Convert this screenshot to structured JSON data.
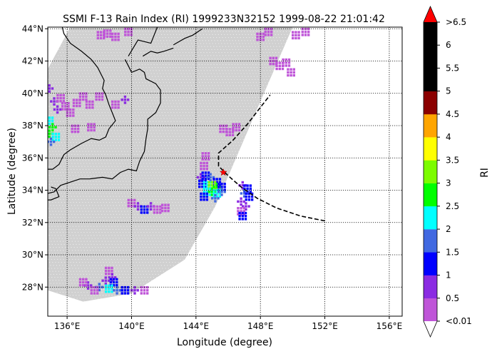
{
  "chart_data": {
    "type": "heatmap",
    "title": "SSMI F-13 Rain Index (RI) 1999233N32152 1999-08-22 21:01:42",
    "xlabel": "Longitude (degree)",
    "ylabel": "Latitude (degree)",
    "xlim": [
      134.8,
      156.8
    ],
    "ylim": [
      26.2,
      44.1
    ],
    "grid": true,
    "x_ticks": [
      {
        "value": 136,
        "label": "136°E"
      },
      {
        "value": 140,
        "label": "140°E"
      },
      {
        "value": 144,
        "label": "144°E"
      },
      {
        "value": 148,
        "label": "148°E"
      },
      {
        "value": 152,
        "label": "152°E"
      },
      {
        "value": 156,
        "label": "156°E"
      }
    ],
    "y_ticks": [
      {
        "value": 28,
        "label": "28°N"
      },
      {
        "value": 30,
        "label": "30°N"
      },
      {
        "value": 32,
        "label": "32°N"
      },
      {
        "value": 34,
        "label": "34°N"
      },
      {
        "value": 36,
        "label": "36°N"
      },
      {
        "value": 38,
        "label": "38°N"
      },
      {
        "value": 40,
        "label": "40°N"
      },
      {
        "value": 42,
        "label": "42°N"
      },
      {
        "value": 44,
        "label": "44°N"
      }
    ],
    "swath": {
      "color": "#d0d0d0",
      "polygon": [
        [
          136.2,
          44.1
        ],
        [
          150.0,
          44.1
        ],
        [
          148.0,
          39.5
        ],
        [
          145.2,
          33.0
        ],
        [
          143.3,
          29.7
        ],
        [
          140.0,
          27.6
        ],
        [
          137.0,
          27.1
        ],
        [
          134.8,
          27.8
        ],
        [
          134.8,
          41.5
        ]
      ]
    },
    "colorbar": {
      "label": "RI",
      "levels": [
        "<0.01",
        "0.5",
        "1",
        "1.5",
        "2",
        "2.5",
        "3",
        "3.5",
        "4",
        "4.5",
        "5",
        "5.5",
        "6",
        ">6.5"
      ],
      "colors": [
        "#bf55d8",
        "#8b2be2",
        "#0000ff",
        "#4169e1",
        "#00ffff",
        "#00ff00",
        "#7cfc00",
        "#ffff00",
        "#ffa500",
        "#8b0000",
        "#000000",
        "#000000",
        "#000000"
      ],
      "over_color": "#ff0000",
      "under_color": "#ffffff"
    },
    "rain_cells": [
      {
        "lon": 134.9,
        "lat": 40.3,
        "level": 1
      },
      {
        "lon": 135.2,
        "lat": 39.5,
        "level": 1
      },
      {
        "lon": 135.4,
        "lat": 39.0,
        "level": 1
      },
      {
        "lon": 134.9,
        "lat": 38.3,
        "level": 4
      },
      {
        "lon": 135.1,
        "lat": 37.9,
        "level": 5
      },
      {
        "lon": 134.9,
        "lat": 37.5,
        "level": 5
      },
      {
        "lon": 135.3,
        "lat": 37.3,
        "level": 4
      },
      {
        "lon": 135.0,
        "lat": 37.0,
        "level": 3
      },
      {
        "lon": 135.6,
        "lat": 39.7,
        "level": 0
      },
      {
        "lon": 135.9,
        "lat": 39.2,
        "level": 0
      },
      {
        "lon": 136.2,
        "lat": 38.8,
        "level": 0
      },
      {
        "lon": 136.6,
        "lat": 39.4,
        "level": 0
      },
      {
        "lon": 137.0,
        "lat": 39.8,
        "level": 0
      },
      {
        "lon": 137.4,
        "lat": 39.3,
        "level": 0
      },
      {
        "lon": 138.0,
        "lat": 39.8,
        "level": 0
      },
      {
        "lon": 136.5,
        "lat": 37.8,
        "level": 0
      },
      {
        "lon": 137.5,
        "lat": 37.9,
        "level": 0
      },
      {
        "lon": 139.0,
        "lat": 39.3,
        "level": 0
      },
      {
        "lon": 139.6,
        "lat": 39.6,
        "level": 1
      },
      {
        "lon": 138.1,
        "lat": 43.6,
        "level": 0
      },
      {
        "lon": 138.5,
        "lat": 43.7,
        "level": 0
      },
      {
        "lon": 139.0,
        "lat": 43.5,
        "level": 0
      },
      {
        "lon": 139.8,
        "lat": 43.8,
        "level": 0
      },
      {
        "lon": 148.0,
        "lat": 43.5,
        "level": 0
      },
      {
        "lon": 148.5,
        "lat": 43.8,
        "level": 0
      },
      {
        "lon": 150.2,
        "lat": 43.6,
        "level": 0
      },
      {
        "lon": 150.8,
        "lat": 43.8,
        "level": 0
      },
      {
        "lon": 148.8,
        "lat": 42.0,
        "level": 0
      },
      {
        "lon": 149.2,
        "lat": 41.7,
        "level": 0
      },
      {
        "lon": 149.6,
        "lat": 41.9,
        "level": 0
      },
      {
        "lon": 149.9,
        "lat": 41.3,
        "level": 0
      },
      {
        "lon": 145.7,
        "lat": 37.8,
        "level": 0
      },
      {
        "lon": 146.1,
        "lat": 37.6,
        "level": 0
      },
      {
        "lon": 146.5,
        "lat": 37.9,
        "level": 0
      },
      {
        "lon": 144.6,
        "lat": 36.1,
        "level": 0
      },
      {
        "lon": 144.5,
        "lat": 35.5,
        "level": 0
      },
      {
        "lon": 144.3,
        "lat": 34.8,
        "level": 1
      },
      {
        "lon": 144.6,
        "lat": 34.9,
        "level": 2
      },
      {
        "lon": 144.9,
        "lat": 34.8,
        "level": 3
      },
      {
        "lon": 145.3,
        "lat": 34.5,
        "level": 2
      },
      {
        "lon": 144.4,
        "lat": 34.4,
        "level": 2
      },
      {
        "lon": 144.7,
        "lat": 34.3,
        "level": 4
      },
      {
        "lon": 145.0,
        "lat": 34.3,
        "level": 6
      },
      {
        "lon": 145.3,
        "lat": 34.2,
        "level": 5
      },
      {
        "lon": 145.6,
        "lat": 34.2,
        "level": 2
      },
      {
        "lon": 144.7,
        "lat": 33.9,
        "level": 4
      },
      {
        "lon": 145.0,
        "lat": 33.9,
        "level": 5
      },
      {
        "lon": 145.3,
        "lat": 33.8,
        "level": 4
      },
      {
        "lon": 145.6,
        "lat": 33.9,
        "level": 3
      },
      {
        "lon": 144.5,
        "lat": 33.6,
        "level": 2
      },
      {
        "lon": 145.2,
        "lat": 33.5,
        "level": 3
      },
      {
        "lon": 146.9,
        "lat": 34.3,
        "level": 1
      },
      {
        "lon": 147.2,
        "lat": 34.1,
        "level": 2
      },
      {
        "lon": 147.0,
        "lat": 33.8,
        "level": 3
      },
      {
        "lon": 147.3,
        "lat": 33.6,
        "level": 2
      },
      {
        "lon": 146.8,
        "lat": 33.3,
        "level": 1
      },
      {
        "lon": 147.1,
        "lat": 33.0,
        "level": 1
      },
      {
        "lon": 146.8,
        "lat": 32.7,
        "level": 0
      },
      {
        "lon": 146.9,
        "lat": 32.4,
        "level": 2
      },
      {
        "lon": 140.0,
        "lat": 33.2,
        "level": 0
      },
      {
        "lon": 140.4,
        "lat": 33.0,
        "level": 1
      },
      {
        "lon": 140.8,
        "lat": 32.8,
        "level": 2
      },
      {
        "lon": 141.2,
        "lat": 33.0,
        "level": 1
      },
      {
        "lon": 141.6,
        "lat": 32.8,
        "level": 0
      },
      {
        "lon": 142.1,
        "lat": 32.9,
        "level": 0
      },
      {
        "lon": 138.6,
        "lat": 29.0,
        "level": 0
      },
      {
        "lon": 138.8,
        "lat": 28.6,
        "level": 1
      },
      {
        "lon": 138.4,
        "lat": 28.4,
        "level": 1
      },
      {
        "lon": 138.9,
        "lat": 28.3,
        "level": 2
      },
      {
        "lon": 138.0,
        "lat": 28.0,
        "level": 3
      },
      {
        "lon": 138.6,
        "lat": 27.9,
        "level": 4
      },
      {
        "lon": 139.1,
        "lat": 27.8,
        "level": 3
      },
      {
        "lon": 137.3,
        "lat": 28.1,
        "level": 1
      },
      {
        "lon": 137.7,
        "lat": 27.8,
        "level": 0
      },
      {
        "lon": 139.6,
        "lat": 27.8,
        "level": 2
      },
      {
        "lon": 140.2,
        "lat": 27.8,
        "level": 1
      },
      {
        "lon": 137.0,
        "lat": 28.3,
        "level": 0
      },
      {
        "lon": 140.8,
        "lat": 27.8,
        "level": 0
      }
    ],
    "track": [
      [
        152.0,
        32.1
      ],
      [
        150.5,
        32.4
      ],
      [
        149.0,
        32.9
      ],
      [
        147.8,
        33.5
      ],
      [
        146.8,
        34.2
      ],
      [
        146.0,
        34.9
      ],
      [
        145.4,
        35.5
      ],
      [
        145.4,
        36.3
      ],
      [
        146.3,
        37.1
      ],
      [
        147.2,
        38.1
      ],
      [
        147.9,
        39.0
      ],
      [
        148.6,
        39.9
      ]
    ],
    "storm_center": {
      "lon": 145.7,
      "lat": 35.1
    },
    "coast": [
      [
        [
          135.7,
          44.1
        ],
        [
          135.8,
          43.7
        ],
        [
          136.2,
          43.1
        ],
        [
          136.9,
          42.6
        ],
        [
          137.5,
          42.1
        ],
        [
          137.9,
          41.6
        ],
        [
          138.1,
          41.2
        ],
        [
          138.3,
          40.8
        ],
        [
          138.2,
          40.3
        ],
        [
          138.4,
          39.9
        ],
        [
          138.6,
          39.3
        ],
        [
          138.8,
          38.8
        ],
        [
          139.0,
          38.3
        ],
        [
          138.6,
          37.8
        ],
        [
          138.4,
          37.3
        ],
        [
          138.0,
          37.1
        ],
        [
          137.5,
          37.2
        ],
        [
          136.9,
          36.9
        ],
        [
          136.2,
          36.5
        ],
        [
          135.8,
          36.2
        ],
        [
          135.5,
          35.6
        ],
        [
          135.1,
          35.3
        ],
        [
          134.8,
          35.3
        ]
      ],
      [
        [
          134.8,
          33.8
        ],
        [
          135.2,
          33.9
        ],
        [
          135.6,
          34.3
        ],
        [
          136.2,
          34.5
        ],
        [
          136.8,
          34.7
        ],
        [
          137.4,
          34.7
        ],
        [
          138.2,
          34.8
        ],
        [
          138.8,
          34.7
        ],
        [
          139.3,
          35.1
        ],
        [
          139.8,
          35.3
        ],
        [
          140.3,
          35.2
        ],
        [
          140.5,
          35.8
        ],
        [
          140.8,
          36.4
        ],
        [
          140.9,
          37.2
        ],
        [
          141.0,
          37.8
        ],
        [
          141.0,
          38.4
        ],
        [
          141.5,
          38.8
        ],
        [
          141.8,
          39.4
        ],
        [
          141.8,
          40.2
        ],
        [
          141.5,
          40.6
        ],
        [
          140.9,
          40.9
        ],
        [
          140.8,
          41.3
        ],
        [
          140.5,
          41.5
        ],
        [
          140.0,
          41.3
        ],
        [
          139.8,
          41.7
        ],
        [
          139.6,
          42.1
        ]
      ],
      [
        [
          139.8,
          42.3
        ],
        [
          140.1,
          42.8
        ],
        [
          140.4,
          43.3
        ],
        [
          141.2,
          43.1
        ],
        [
          141.4,
          43.6
        ],
        [
          141.6,
          44.1
        ]
      ],
      [
        [
          140.7,
          42.3
        ],
        [
          141.2,
          42.6
        ],
        [
          141.6,
          42.5
        ],
        [
          142.0,
          42.6
        ],
        [
          142.6,
          42.8
        ]
      ],
      [
        [
          142.6,
          43.0
        ],
        [
          143.3,
          43.4
        ],
        [
          143.8,
          43.6
        ],
        [
          144.4,
          44.0
        ]
      ],
      [
        [
          135.0,
          34.2
        ],
        [
          135.3,
          34.1
        ],
        [
          135.5,
          33.6
        ],
        [
          135.0,
          33.4
        ],
        [
          134.8,
          33.4
        ]
      ]
    ]
  }
}
